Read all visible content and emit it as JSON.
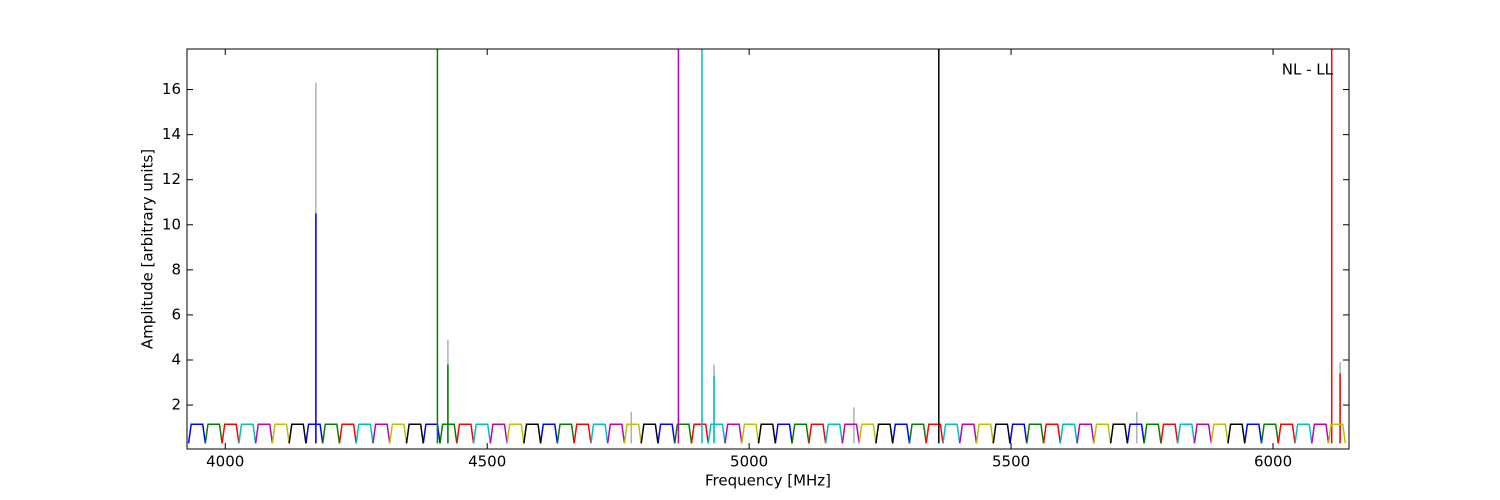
{
  "chart_data": {
    "type": "line",
    "xlabel": "Frequency [MHz]",
    "ylabel": "Amplitude [arbitrary units]",
    "annotation": "NL - LL",
    "xlim": [
      3927,
      6145
    ],
    "xticks": [
      4000,
      4500,
      5000,
      5500,
      6000
    ],
    "ylim": [
      0.05,
      17.8
    ],
    "yticks": [
      2,
      4,
      6,
      8,
      10,
      12,
      14,
      16
    ],
    "series": [
      {
        "color": "#b0b0b0",
        "x": [
          4173,
          4173,
          null,
          4425,
          4425,
          null,
          4775,
          4775,
          null,
          4933,
          4933,
          null,
          5200,
          5200,
          null,
          5740,
          5740,
          null,
          6128,
          6128
        ],
        "values": [
          0.3,
          16.3,
          null,
          0.3,
          4.9,
          null,
          0.3,
          1.7,
          null,
          0.3,
          3.8,
          null,
          0.3,
          1.9,
          null,
          0.3,
          1.7,
          null,
          0.3,
          3.9
        ]
      },
      {
        "color": "#0000ff",
        "x": [
          3930,
          3935,
          3957,
          3962,
          null,
          4154,
          4159,
          4181,
          4186,
          null,
          4378,
          4383,
          4405,
          4410,
          null,
          4602,
          4607,
          4629,
          4634,
          null,
          4826,
          4831,
          4853,
          4858,
          null,
          5050,
          5055,
          5077,
          5082,
          null,
          5274,
          5279,
          5301,
          5306,
          null,
          5498,
          5503,
          5525,
          5530,
          null,
          5722,
          5727,
          5749,
          5754,
          null,
          5946,
          5951,
          5973,
          5978,
          null,
          4173,
          4173
        ],
        "values": [
          0.3,
          1.15,
          1.15,
          0.3,
          null,
          0.3,
          1.15,
          1.15,
          0.3,
          null,
          0.3,
          1.15,
          1.15,
          0.3,
          null,
          0.3,
          1.15,
          1.15,
          0.3,
          null,
          0.3,
          1.15,
          1.15,
          0.3,
          null,
          0.3,
          1.15,
          1.15,
          0.3,
          null,
          0.3,
          1.15,
          1.15,
          0.3,
          null,
          0.3,
          1.15,
          1.15,
          0.3,
          null,
          0.3,
          1.15,
          1.15,
          0.3,
          null,
          0.3,
          1.15,
          1.15,
          0.3,
          null,
          0.3,
          10.5
        ]
      },
      {
        "color": "#008000",
        "x": [
          3962,
          3967,
          3989,
          3994,
          null,
          4186,
          4191,
          4213,
          4218,
          null,
          4410,
          4415,
          4437,
          4442,
          null,
          4634,
          4639,
          4661,
          4666,
          null,
          4858,
          4863,
          4885,
          4890,
          null,
          5082,
          5087,
          5109,
          5114,
          null,
          5306,
          5311,
          5333,
          5338,
          null,
          5530,
          5535,
          5557,
          5562,
          null,
          5754,
          5759,
          5781,
          5786,
          null,
          5978,
          5983,
          6005,
          6010,
          null,
          4405,
          4405,
          null,
          4425,
          4425
        ],
        "values": [
          0.3,
          1.15,
          1.15,
          0.3,
          null,
          0.3,
          1.15,
          1.15,
          0.3,
          null,
          0.3,
          1.15,
          1.15,
          0.3,
          null,
          0.3,
          1.15,
          1.15,
          0.3,
          null,
          0.3,
          1.15,
          1.15,
          0.3,
          null,
          0.3,
          1.15,
          1.15,
          0.3,
          null,
          0.3,
          1.15,
          1.15,
          0.3,
          null,
          0.3,
          1.15,
          1.15,
          0.3,
          null,
          0.3,
          1.15,
          1.15,
          0.3,
          null,
          0.3,
          1.15,
          1.15,
          0.3,
          null,
          0.3,
          17.8,
          null,
          0.3,
          3.8
        ]
      },
      {
        "color": "#ff0000",
        "x": [
          3994,
          3999,
          4021,
          4026,
          null,
          4218,
          4223,
          4245,
          4250,
          null,
          4442,
          4447,
          4469,
          4474,
          null,
          4666,
          4671,
          4693,
          4698,
          null,
          4890,
          4895,
          4917,
          4922,
          null,
          5114,
          5119,
          5141,
          5146,
          null,
          5338,
          5343,
          5365,
          5370,
          null,
          5562,
          5567,
          5589,
          5594,
          null,
          5786,
          5791,
          5813,
          5818,
          null,
          6010,
          6015,
          6037,
          6042,
          null,
          6112,
          6112,
          null,
          6128,
          6128
        ],
        "values": [
          0.3,
          1.15,
          1.15,
          0.3,
          null,
          0.3,
          1.15,
          1.15,
          0.3,
          null,
          0.3,
          1.15,
          1.15,
          0.3,
          null,
          0.3,
          1.15,
          1.15,
          0.3,
          null,
          0.3,
          1.15,
          1.15,
          0.3,
          null,
          0.3,
          1.15,
          1.15,
          0.3,
          null,
          0.3,
          1.15,
          1.15,
          0.3,
          null,
          0.3,
          1.15,
          1.15,
          0.3,
          null,
          0.3,
          1.15,
          1.15,
          0.3,
          null,
          0.3,
          1.15,
          1.15,
          0.3,
          null,
          0.3,
          17.8,
          null,
          0.3,
          3.4
        ]
      },
      {
        "color": "#00bfbf",
        "x": [
          4026,
          4031,
          4053,
          4058,
          null,
          4250,
          4255,
          4277,
          4282,
          null,
          4474,
          4479,
          4501,
          4506,
          null,
          4698,
          4703,
          4725,
          4730,
          null,
          4922,
          4927,
          4949,
          4954,
          null,
          5146,
          5151,
          5173,
          5178,
          null,
          5370,
          5375,
          5397,
          5402,
          null,
          5594,
          5599,
          5621,
          5626,
          null,
          5818,
          5823,
          5845,
          5850,
          null,
          6042,
          6047,
          6069,
          6074,
          null,
          4910,
          4910,
          null,
          4933,
          4933
        ],
        "values": [
          0.3,
          1.15,
          1.15,
          0.3,
          null,
          0.3,
          1.15,
          1.15,
          0.3,
          null,
          0.3,
          1.15,
          1.15,
          0.3,
          null,
          0.3,
          1.15,
          1.15,
          0.3,
          null,
          0.3,
          1.15,
          1.15,
          0.3,
          null,
          0.3,
          1.15,
          1.15,
          0.3,
          null,
          0.3,
          1.15,
          1.15,
          0.3,
          null,
          0.3,
          1.15,
          1.15,
          0.3,
          null,
          0.3,
          1.15,
          1.15,
          0.3,
          null,
          0.3,
          1.15,
          1.15,
          0.3,
          null,
          0.3,
          17.8,
          null,
          0.3,
          3.3
        ]
      },
      {
        "color": "#bf00bf",
        "x": [
          4058,
          4063,
          4085,
          4090,
          null,
          4282,
          4287,
          4309,
          4314,
          null,
          4506,
          4511,
          4533,
          4538,
          null,
          4730,
          4735,
          4757,
          4762,
          null,
          4954,
          4959,
          4981,
          4986,
          null,
          5178,
          5183,
          5205,
          5210,
          null,
          5402,
          5407,
          5429,
          5434,
          null,
          5626,
          5631,
          5653,
          5658,
          null,
          5850,
          5855,
          5877,
          5882,
          null,
          6074,
          6079,
          6101,
          6106,
          null,
          4865,
          4865
        ],
        "values": [
          0.3,
          1.15,
          1.15,
          0.3,
          null,
          0.3,
          1.15,
          1.15,
          0.3,
          null,
          0.3,
          1.15,
          1.15,
          0.3,
          null,
          0.3,
          1.15,
          1.15,
          0.3,
          null,
          0.3,
          1.15,
          1.15,
          0.3,
          null,
          0.3,
          1.15,
          1.15,
          0.3,
          null,
          0.3,
          1.15,
          1.15,
          0.3,
          null,
          0.3,
          1.15,
          1.15,
          0.3,
          null,
          0.3,
          1.15,
          1.15,
          0.3,
          null,
          0.3,
          1.15,
          1.15,
          0.3,
          null,
          0.3,
          17.8
        ]
      },
      {
        "color": "#bfbf00",
        "x": [
          4090,
          4095,
          4117,
          4122,
          null,
          4314,
          4319,
          4341,
          4346,
          null,
          4538,
          4543,
          4565,
          4570,
          null,
          4762,
          4767,
          4789,
          4794,
          null,
          4986,
          4991,
          5013,
          5018,
          null,
          5210,
          5215,
          5237,
          5242,
          null,
          5434,
          5439,
          5461,
          5466,
          null,
          5658,
          5663,
          5685,
          5690,
          null,
          5882,
          5887,
          5909,
          5914,
          null,
          6106,
          6111,
          6133,
          6138
        ],
        "values": [
          0.3,
          1.15,
          1.15,
          0.3,
          null,
          0.3,
          1.15,
          1.15,
          0.3,
          null,
          0.3,
          1.15,
          1.15,
          0.3,
          null,
          0.3,
          1.15,
          1.15,
          0.3,
          null,
          0.3,
          1.15,
          1.15,
          0.3,
          null,
          0.3,
          1.15,
          1.15,
          0.3,
          null,
          0.3,
          1.15,
          1.15,
          0.3,
          null,
          0.3,
          1.15,
          1.15,
          0.3,
          null,
          0.3,
          1.15,
          1.15,
          0.3,
          null,
          0.3,
          1.15,
          1.15,
          0.3
        ]
      },
      {
        "color": "#000000",
        "x": [
          4122,
          4127,
          4149,
          4154,
          null,
          4346,
          4351,
          4373,
          4378,
          null,
          4570,
          4575,
          4597,
          4602,
          null,
          4794,
          4799,
          4821,
          4826,
          null,
          5018,
          5023,
          5045,
          5050,
          null,
          5242,
          5247,
          5269,
          5274,
          null,
          5466,
          5471,
          5493,
          5498,
          null,
          5690,
          5695,
          5717,
          5722,
          null,
          5914,
          5919,
          5941,
          5946,
          null,
          5362,
          5362
        ],
        "values": [
          0.3,
          1.15,
          1.15,
          0.3,
          null,
          0.3,
          1.15,
          1.15,
          0.3,
          null,
          0.3,
          1.15,
          1.15,
          0.3,
          null,
          0.3,
          1.15,
          1.15,
          0.3,
          null,
          0.3,
          1.15,
          1.15,
          0.3,
          null,
          0.3,
          1.15,
          1.15,
          0.3,
          null,
          0.3,
          1.15,
          1.15,
          0.3,
          null,
          0.3,
          1.15,
          1.15,
          0.3,
          null,
          0.3,
          1.15,
          1.15,
          0.3,
          null,
          0.3,
          17.8
        ]
      }
    ]
  }
}
